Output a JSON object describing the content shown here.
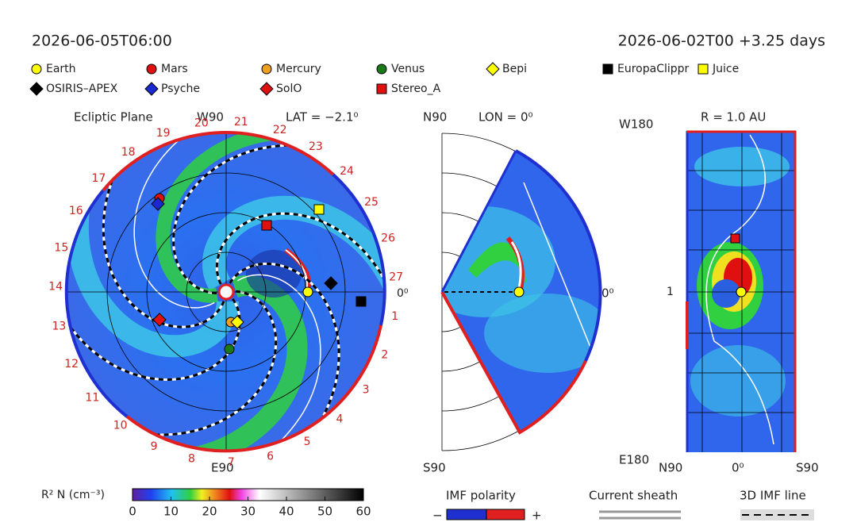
{
  "header": {
    "time": "2026-06-05T06:00",
    "run": "2026-06-02T00 +3.25 days"
  },
  "legend": [
    {
      "label": "Earth",
      "marker": "circle",
      "color": "#ffff00"
    },
    {
      "label": "Mars",
      "marker": "circle",
      "color": "#e01010"
    },
    {
      "label": "Mercury",
      "marker": "circle",
      "color": "#f0a020"
    },
    {
      "label": "Venus",
      "marker": "circle",
      "color": "#1a7a1a"
    },
    {
      "label": "Bepi",
      "marker": "diamond",
      "color": "#ffff00"
    },
    {
      "label": "EuropaClippr",
      "marker": "square",
      "color": "#000000"
    },
    {
      "label": "Juice",
      "marker": "square",
      "color": "#ffff00"
    },
    {
      "label": "OSIRIS–APEX",
      "marker": "diamond",
      "color": "#000000"
    },
    {
      "label": "Psyche",
      "marker": "diamond",
      "color": "#1a2ad0"
    },
    {
      "label": "SolO",
      "marker": "diamond",
      "color": "#e01010"
    },
    {
      "label": "Stereo_A",
      "marker": "square",
      "color": "#e01010"
    }
  ],
  "ecliptic": {
    "title": "Ecliptic Plane",
    "top": "W90",
    "bottom": "E90",
    "lat": "LAT = −2.1⁰",
    "zero": "0⁰",
    "rim_labels": [
      "1",
      "2",
      "3",
      "4",
      "5",
      "6",
      "7",
      "8",
      "9",
      "10",
      "11",
      "12",
      "13",
      "14",
      "15",
      "16",
      "17",
      "18",
      "19",
      "20",
      "21",
      "22",
      "23",
      "24",
      "25",
      "26",
      "27"
    ]
  },
  "meridional": {
    "top": "N90",
    "lon": "LON = 0⁰",
    "zero": "0⁰",
    "bottom": "S90"
  },
  "map": {
    "top_left": "W180",
    "radius": "R = 1.0 AU",
    "left_mid": "1",
    "bottom_left": "E180",
    "bottom": [
      "N90",
      "0⁰",
      "S90"
    ]
  },
  "colorbar": {
    "label": "R² N (cm⁻³)",
    "lim": [
      0,
      60
    ],
    "ticks": [
      0,
      10,
      20,
      30,
      40,
      50,
      60
    ]
  },
  "keys": {
    "imf": "IMF polarity",
    "minus": "−",
    "plus": "+",
    "sheath": "Current sheath",
    "line": "3D IMF line"
  }
}
